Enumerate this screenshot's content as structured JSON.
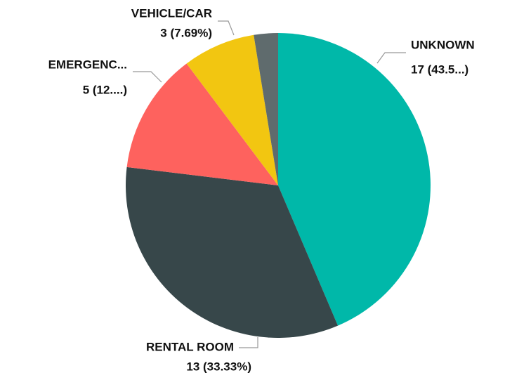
{
  "chart_data": {
    "type": "pie",
    "categories": [
      "UNKNOWN",
      "RENTAL ROOM",
      "EMERGENC...",
      "VEHICLE/CAR",
      null
    ],
    "values": [
      17,
      13,
      5,
      3,
      1
    ],
    "value_labels": [
      "17 (43.5...)",
      "13 (33.33%)",
      "5 (12....)",
      "3 (7.69%)",
      null
    ],
    "colors": [
      "#00b8a9",
      "#37474a",
      "#fe625e",
      "#f2c611",
      "#5f6b6d"
    ]
  }
}
